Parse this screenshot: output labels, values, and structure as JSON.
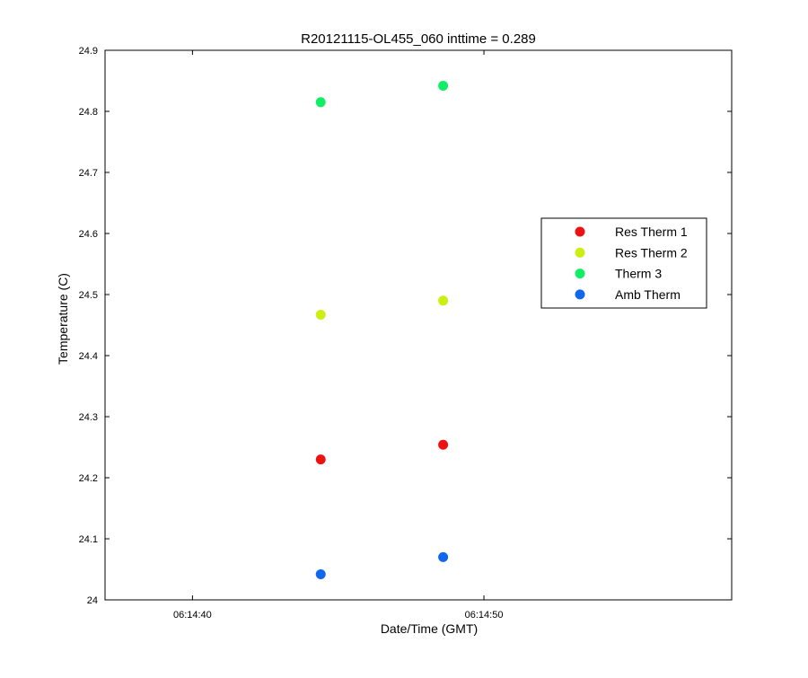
{
  "chart_data": {
    "type": "scatter",
    "title": "R20121115-OL455_060 inttime = 0.289",
    "xlabel": "Date/Time (GMT)",
    "ylabel": "Temperature (C)",
    "ylim": [
      24.0,
      24.9
    ],
    "xlim": [
      "06:14:37",
      "06:14:58.5"
    ],
    "x_tick_labels": [
      "06:14:40",
      "06:14:50"
    ],
    "y_tick_labels": [
      "24",
      "24.1",
      "24.2",
      "24.3",
      "24.4",
      "24.5",
      "24.6",
      "24.7",
      "24.8",
      "24.9"
    ],
    "x": [
      "06:14:44.4",
      "06:14:48.6"
    ],
    "series": [
      {
        "name": "Res Therm 1",
        "color": "#ee1111",
        "values": [
          24.23,
          24.254
        ]
      },
      {
        "name": "Res Therm 2",
        "color": "#ccee11",
        "values": [
          24.467,
          24.49
        ]
      },
      {
        "name": "Therm 3",
        "color": "#11ee66",
        "values": [
          24.815,
          24.842
        ]
      },
      {
        "name": "Amb Therm",
        "color": "#1166ee",
        "values": [
          24.042,
          24.07
        ]
      }
    ],
    "grid": false,
    "legend_position": "right"
  }
}
